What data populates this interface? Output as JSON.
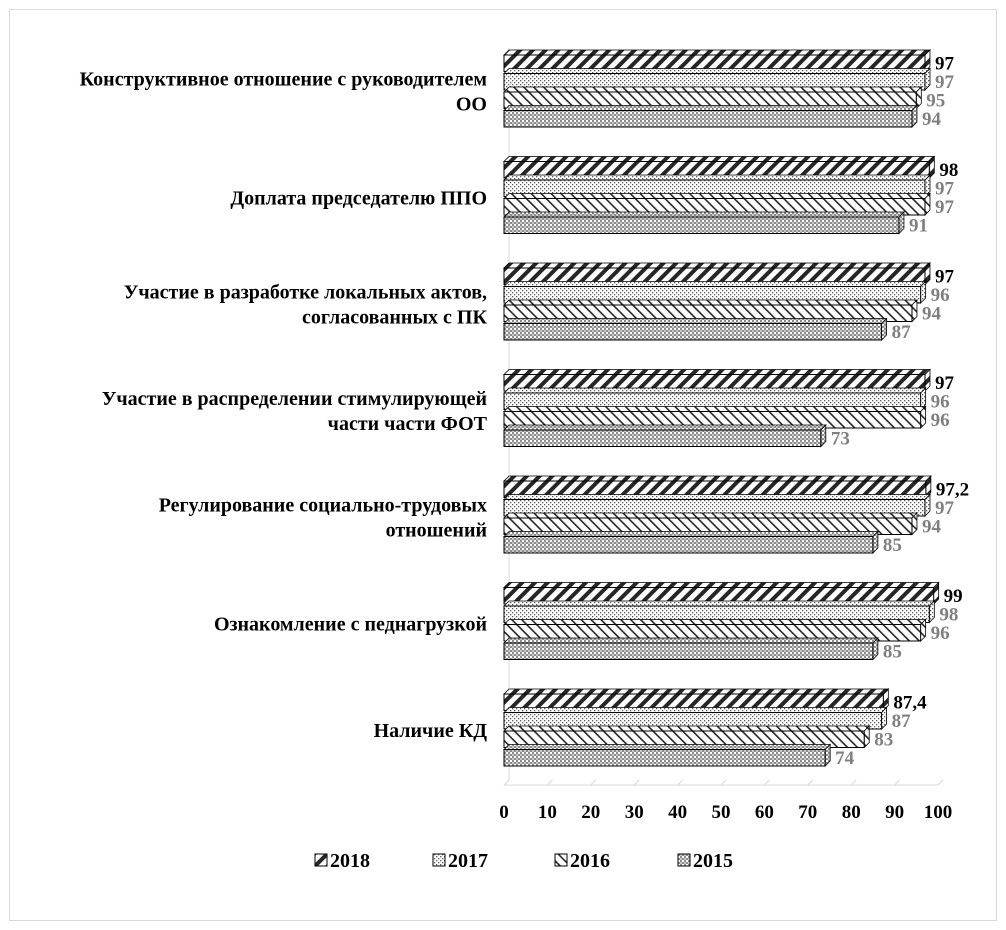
{
  "chart_data": {
    "type": "bar",
    "orientation": "horizontal",
    "style": "3d-clustered",
    "categories": [
      [
        "Конструктивное отношение с руководителем",
        "ОО"
      ],
      [
        "Доплата председателю ППО"
      ],
      [
        "Участие в разработке локальных актов,",
        "согласованных с ПК"
      ],
      [
        "Участие в распределении стимулирующей",
        "части части ФОТ"
      ],
      [
        "Регулирование социально-трудовых",
        "отношений"
      ],
      [
        "Ознакомление с педнагрузкой"
      ],
      [
        "Наличие КД"
      ]
    ],
    "series": [
      {
        "name": "2018",
        "pattern": "wide-diagonal",
        "label_color": "#000000",
        "values": [
          97,
          98,
          97,
          97,
          97.2,
          99,
          87.4
        ],
        "labels": [
          "97",
          "98",
          "97",
          "97",
          "97,2",
          "99",
          "87,4"
        ]
      },
      {
        "name": "2017",
        "pattern": "dots",
        "label_color": "#7f7f7f",
        "values": [
          97,
          97,
          96,
          96,
          97,
          98,
          87
        ],
        "labels": [
          "97",
          "97",
          "96",
          "96",
          "97",
          "98",
          "87"
        ]
      },
      {
        "name": "2016",
        "pattern": "back-diagonal",
        "label_color": "#7f7f7f",
        "values": [
          95,
          97,
          94,
          96,
          94,
          96,
          83
        ],
        "labels": [
          "95",
          "97",
          "94",
          "96",
          "94",
          "96",
          "83"
        ]
      },
      {
        "name": "2015",
        "pattern": "checker",
        "label_color": "#7f7f7f",
        "values": [
          94,
          91,
          87,
          73,
          85,
          85,
          74
        ],
        "labels": [
          "94",
          "91",
          "87",
          "73",
          "85",
          "85",
          "74"
        ]
      }
    ],
    "x_ticks": [
      "0",
      "10",
      "20",
      "30",
      "40",
      "50",
      "60",
      "70",
      "80",
      "90",
      "100"
    ],
    "xlim": [
      0,
      100
    ],
    "grid": false,
    "legend_position": "bottom",
    "legend_order": [
      "2018",
      "2017",
      "2016",
      "2015"
    ],
    "colors": {
      "bar_fill": "#ffffff",
      "bar_stroke": "#000000",
      "pattern": "#262626",
      "dots": "#595959",
      "checker": "#8c8c8c",
      "axis": "#d9d9d9"
    }
  }
}
